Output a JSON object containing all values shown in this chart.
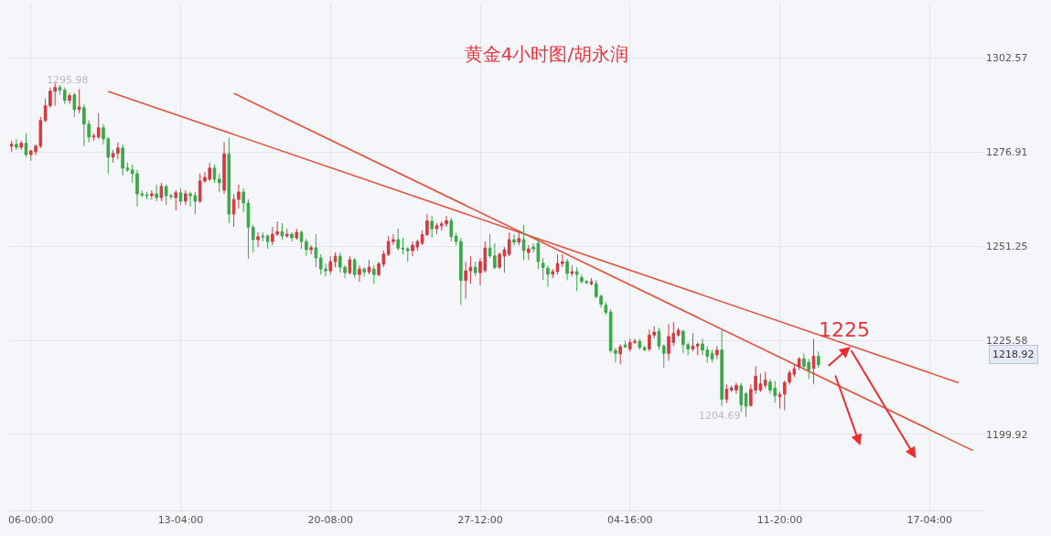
{
  "chart_data": {
    "type": "candlestick",
    "title": "黄金4小时图/胡永润",
    "categories": [
      null,
      null,
      null,
      null,
      "06-00:00",
      null,
      null,
      null,
      null,
      null,
      null,
      null,
      null,
      null,
      null,
      null,
      null,
      null,
      null,
      null,
      null,
      null,
      null,
      null,
      null,
      null,
      null,
      null,
      null,
      null,
      null,
      null,
      null,
      null,
      null,
      "13-04:00",
      null,
      null,
      null,
      null,
      null,
      null,
      null,
      null,
      null,
      null,
      null,
      null,
      null,
      null,
      null,
      null,
      null,
      null,
      null,
      null,
      null,
      null,
      null,
      null,
      null,
      null,
      null,
      null,
      null,
      null,
      "20-08:00",
      null,
      null,
      null,
      null,
      null,
      null,
      null,
      null,
      null,
      null,
      null,
      null,
      null,
      null,
      null,
      null,
      null,
      null,
      null,
      null,
      null,
      null,
      null,
      null,
      null,
      null,
      null,
      null,
      null,
      null,
      "27-12:00",
      null,
      null,
      null,
      null,
      null,
      null,
      null,
      null,
      null,
      null,
      null,
      null,
      null,
      null,
      null,
      null,
      null,
      null,
      null,
      null,
      null,
      null,
      null,
      null,
      null,
      null,
      null,
      null,
      null,
      null,
      "04-16:00",
      null,
      null,
      null,
      null,
      null,
      null,
      null,
      null,
      null,
      null,
      null,
      null,
      null,
      null,
      null,
      null,
      null,
      null,
      null,
      null,
      null,
      null,
      null,
      null,
      null,
      null,
      null,
      null,
      null,
      null,
      "11-20:00",
      null,
      null,
      null,
      null,
      null,
      null,
      null,
      null,
      null,
      null,
      null,
      null,
      null,
      null,
      null,
      null,
      null,
      null,
      null,
      null,
      null,
      null,
      null,
      null,
      null,
      null,
      null,
      null,
      null,
      null,
      "17-04:00",
      null,
      null,
      null,
      null,
      null,
      null,
      null,
      null,
      null,
      null,
      null
    ],
    "ylim": [
      1179.2,
      1317.35
    ],
    "yticks": [
      1199.92,
      1225.58,
      1251.25,
      1276.91,
      1302.57
    ],
    "grid": true,
    "series": [
      {
        "type": "line",
        "color": "#e0533c",
        "values": [
          null,
          null,
          null,
          null,
          null,
          null,
          null,
          null,
          null,
          null,
          null,
          null,
          null,
          null,
          null,
          null,
          null,
          null,
          null,
          null,
          1293.4,
          null,
          null,
          null,
          null,
          null,
          null,
          null,
          null,
          null,
          null,
          null,
          null,
          null,
          null,
          null,
          null,
          null,
          null,
          null,
          null,
          null,
          null,
          null,
          null,
          null,
          null,
          null,
          null,
          null,
          null,
          null,
          null,
          null,
          null,
          null,
          null,
          null,
          null,
          null,
          null,
          null,
          null,
          null,
          null,
          null,
          null,
          null,
          null,
          null,
          null,
          null,
          null,
          null,
          null,
          null,
          null,
          null,
          null,
          null,
          null,
          null,
          null,
          null,
          null,
          null,
          null,
          null,
          null,
          null,
          null,
          null,
          null,
          null,
          null,
          null,
          null,
          null,
          null,
          null,
          null,
          null,
          null,
          null,
          null,
          null,
          null,
          null,
          null,
          null,
          null,
          null,
          null,
          null,
          null,
          null,
          null,
          null,
          null,
          null,
          null,
          null,
          null,
          null,
          null,
          null,
          null,
          null,
          null,
          null,
          null,
          null,
          null,
          null,
          null,
          null,
          null,
          null,
          null,
          null,
          null,
          null,
          null,
          null,
          null,
          null,
          null,
          null,
          null,
          null,
          null,
          null,
          null,
          null,
          null,
          null,
          null,
          null,
          null,
          null,
          null,
          null,
          null,
          null,
          null,
          null,
          null,
          null,
          null,
          null,
          null,
          null,
          null,
          null,
          null,
          null,
          null,
          null,
          null,
          null,
          null,
          null,
          null,
          null,
          null,
          null,
          null,
          null,
          null,
          null,
          null,
          null,
          null,
          null,
          null,
          null,
          1214.0,
          null,
          null,
          null,
          null,
          null
        ]
      },
      {
        "type": "line",
        "color": "#e0533c",
        "values": [
          null,
          null,
          null,
          null,
          null,
          null,
          null,
          null,
          null,
          null,
          null,
          null,
          null,
          null,
          null,
          null,
          null,
          null,
          null,
          null,
          null,
          null,
          null,
          null,
          null,
          null,
          null,
          null,
          null,
          null,
          null,
          null,
          null,
          null,
          null,
          null,
          null,
          null,
          null,
          null,
          null,
          null,
          null,
          null,
          null,
          null,
          1292.9,
          null,
          null,
          null,
          null,
          null,
          null,
          null,
          null,
          null,
          null,
          null,
          null,
          null,
          null,
          null,
          null,
          null,
          null,
          null,
          null,
          null,
          null,
          null,
          null,
          null,
          null,
          null,
          null,
          null,
          null,
          null,
          null,
          null,
          null,
          null,
          null,
          null,
          null,
          null,
          null,
          null,
          null,
          null,
          null,
          null,
          null,
          null,
          null,
          null,
          null,
          null,
          null,
          null,
          null,
          null,
          null,
          null,
          null,
          null,
          null,
          null,
          null,
          null,
          null,
          null,
          null,
          null,
          null,
          null,
          null,
          null,
          null,
          null,
          null,
          null,
          null,
          null,
          null,
          null,
          null,
          null,
          null,
          null,
          null,
          null,
          null,
          null,
          null,
          null,
          null,
          null,
          null,
          null,
          null,
          null,
          null,
          null,
          null,
          null,
          null,
          null,
          null,
          null,
          null,
          null,
          null,
          null,
          null,
          null,
          null,
          null,
          null,
          null,
          null,
          null,
          null,
          null,
          null,
          null,
          null,
          null,
          null,
          null,
          null,
          null,
          null,
          null,
          null,
          null,
          null,
          null,
          null,
          null,
          null,
          null,
          null,
          null,
          null,
          null,
          null,
          null,
          null,
          null,
          null,
          null,
          null,
          null,
          null,
          null,
          null,
          null,
          null,
          1195.5,
          null,
          null
        ]
      },
      {
        "ohlc": [
          [
            1278.5,
            1280,
            1277,
            1279
          ],
          [
            1279,
            1280.5,
            1277.5,
            1278.2
          ],
          [
            1278.2,
            1280,
            1277.5,
            1279.3
          ],
          [
            1279.3,
            1282,
            1275.5,
            1276.2
          ],
          [
            1276.2,
            1277.5,
            1274.5,
            1277.2
          ],
          [
            1277,
            1279,
            1276,
            1278.5
          ],
          [
            1278.5,
            1286.5,
            1278,
            1285.5
          ],
          [
            1285.5,
            1291.5,
            1285,
            1289.5
          ],
          [
            1289.5,
            1294.5,
            1289,
            1293.5
          ],
          [
            1293.5,
            1295.98,
            1289.5,
            1294.5
          ],
          [
            1294.5,
            1295.2,
            1292.5,
            1293.8
          ],
          [
            1293.8,
            1294.5,
            1290,
            1291
          ],
          [
            1291,
            1293,
            1290,
            1292.3
          ],
          [
            1292.5,
            1293,
            1286.5,
            1288.5
          ],
          [
            1288.5,
            1294,
            1287.5,
            1289.2
          ],
          [
            1289,
            1290,
            1278.5,
            1284.5
          ],
          [
            1284.5,
            1285.5,
            1279.5,
            1281
          ],
          [
            1281,
            1282,
            1280,
            1281.3
          ],
          [
            1281,
            1287.5,
            1280.5,
            1283.5
          ],
          [
            1283.5,
            1284.5,
            1279,
            1280.5
          ],
          [
            1280.5,
            1281,
            1271,
            1275.5
          ],
          [
            1275.5,
            1277.5,
            1274,
            1276.5
          ],
          [
            1276.5,
            1279.5,
            1275,
            1278
          ],
          [
            1278,
            1279,
            1270.5,
            1272.5
          ],
          [
            1272.5,
            1274,
            1271.5,
            1272
          ],
          [
            1272,
            1273.5,
            1268.5,
            1271
          ],
          [
            1271,
            1272,
            1262,
            1265.5
          ],
          [
            1265.5,
            1266.5,
            1264.5,
            1265.2
          ],
          [
            1265.2,
            1266,
            1264,
            1265
          ],
          [
            1265,
            1266.5,
            1264,
            1265.5
          ],
          [
            1265.5,
            1268,
            1263.5,
            1264.5
          ],
          [
            1264.5,
            1268.5,
            1263.5,
            1267.5
          ],
          [
            1267.5,
            1268,
            1262.5,
            1265
          ],
          [
            1265,
            1265.5,
            1264,
            1264.8
          ],
          [
            1264.5,
            1266.5,
            1261,
            1265.8
          ],
          [
            1265.8,
            1267,
            1262.5,
            1263.5
          ],
          [
            1263.5,
            1266.5,
            1262.5,
            1265.5
          ],
          [
            1265.5,
            1266,
            1262,
            1265
          ],
          [
            1265,
            1266,
            1260,
            1263.5
          ],
          [
            1263.5,
            1271,
            1263,
            1269
          ],
          [
            1269,
            1271.5,
            1268.5,
            1270
          ],
          [
            1269.5,
            1274,
            1269,
            1272.5
          ],
          [
            1272.5,
            1273.5,
            1268.5,
            1269.5
          ],
          [
            1269.5,
            1271,
            1266,
            1268.5
          ],
          [
            1266.5,
            1279.6,
            1265.5,
            1276.4
          ],
          [
            1276.4,
            1280.8,
            1257.5,
            1260
          ],
          [
            1260,
            1265.5,
            1256.5,
            1264
          ],
          [
            1264,
            1268,
            1261.5,
            1266
          ],
          [
            1266,
            1267,
            1260.5,
            1263
          ],
          [
            1263,
            1264,
            1247.8,
            1256.4
          ],
          [
            1256.4,
            1257,
            1249.5,
            1253
          ],
          [
            1253,
            1255,
            1251,
            1253.8
          ],
          [
            1254,
            1255,
            1252.5,
            1253.8
          ],
          [
            1254,
            1254.5,
            1250.5,
            1252.5
          ],
          [
            1252.5,
            1256.5,
            1251.5,
            1254.5
          ],
          [
            1254.5,
            1258,
            1254,
            1255.2
          ],
          [
            1255.2,
            1257.5,
            1253,
            1254
          ],
          [
            1254,
            1256,
            1253.5,
            1254.5
          ],
          [
            1254.5,
            1255,
            1252.5,
            1253.5
          ],
          [
            1253.5,
            1256,
            1253,
            1255
          ],
          [
            1255,
            1255.5,
            1250.5,
            1252.5
          ],
          [
            1252.5,
            1253.2,
            1248.5,
            1250.3
          ],
          [
            1250.3,
            1251.5,
            1249,
            1250.8
          ],
          [
            1250.8,
            1254.5,
            1245.5,
            1248
          ],
          [
            1248,
            1249,
            1243.5,
            1245
          ],
          [
            1245,
            1246.5,
            1243,
            1244.5
          ],
          [
            1244.5,
            1248.5,
            1243.5,
            1247
          ],
          [
            1247,
            1249.5,
            1245.5,
            1248.5
          ],
          [
            1248.5,
            1249.5,
            1244,
            1245.5
          ],
          [
            1245.5,
            1246,
            1242.5,
            1244
          ],
          [
            1244,
            1248.5,
            1243.5,
            1247.5
          ],
          [
            1247.5,
            1248,
            1242.5,
            1243.5
          ],
          [
            1243.5,
            1246,
            1241.5,
            1245
          ],
          [
            1245,
            1245.5,
            1243,
            1244.2
          ],
          [
            1244.2,
            1247.5,
            1243.5,
            1245.5
          ],
          [
            1245,
            1246,
            1240.9,
            1243.5
          ],
          [
            1243.5,
            1247,
            1243,
            1246.4
          ],
          [
            1246.3,
            1250,
            1245.5,
            1249.1
          ],
          [
            1249,
            1254,
            1248.5,
            1252.5
          ],
          [
            1252.5,
            1254.5,
            1251.5,
            1253
          ],
          [
            1253,
            1256,
            1250,
            1250.7
          ],
          [
            1250.7,
            1253.5,
            1249,
            1250.5
          ],
          [
            1250.5,
            1251,
            1247,
            1250
          ],
          [
            1250,
            1252.5,
            1248.5,
            1251.5
          ],
          [
            1251,
            1253,
            1250,
            1252.5
          ],
          [
            1252,
            1255.5,
            1251.5,
            1254.4
          ],
          [
            1254.4,
            1260,
            1254,
            1258.1
          ],
          [
            1258,
            1259.5,
            1253.5,
            1256
          ],
          [
            1256,
            1257.5,
            1254.5,
            1256.8
          ],
          [
            1256.8,
            1258,
            1255.5,
            1257.3
          ],
          [
            1257.3,
            1259.5,
            1256.5,
            1258.2
          ],
          [
            1258.2,
            1259,
            1252.5,
            1253.8
          ],
          [
            1254,
            1254.8,
            1251.5,
            1252.5
          ],
          [
            1252.5,
            1253.5,
            1235.2,
            1241.9
          ],
          [
            1241.9,
            1247,
            1236.9,
            1244.5
          ],
          [
            1244.5,
            1248.5,
            1241,
            1245.5
          ],
          [
            1245.5,
            1247,
            1243,
            1244
          ],
          [
            1244,
            1248,
            1240.5,
            1247
          ],
          [
            1244.6,
            1252.5,
            1244,
            1250.7
          ],
          [
            1250.7,
            1254.5,
            1248,
            1248.6
          ],
          [
            1248.6,
            1252,
            1245,
            1245.4
          ],
          [
            1245.5,
            1249.5,
            1245,
            1249
          ],
          [
            1248.5,
            1251,
            1244,
            1250.2
          ],
          [
            1249,
            1255,
            1248.5,
            1253
          ],
          [
            1253,
            1254.5,
            1251.5,
            1252.3
          ],
          [
            1252.3,
            1255.5,
            1251.5,
            1253.3
          ],
          [
            1253,
            1257,
            1247.5,
            1250
          ],
          [
            1249.5,
            1251.5,
            1247.5,
            1250.5
          ],
          [
            1251,
            1252,
            1249.5,
            1250.5
          ],
          [
            1252,
            1253.5,
            1245,
            1247
          ],
          [
            1246.6,
            1248,
            1242,
            1245.4
          ],
          [
            1245.2,
            1246,
            1240.1,
            1243.6
          ],
          [
            1243.6,
            1245,
            1242.5,
            1244.3
          ],
          [
            1244.3,
            1249,
            1243.5,
            1246.5
          ],
          [
            1246.5,
            1249,
            1245.5,
            1247
          ],
          [
            1247,
            1247.8,
            1242,
            1243.8
          ],
          [
            1243.8,
            1246,
            1243,
            1244.3
          ],
          [
            1244.3,
            1245.5,
            1239,
            1243.5
          ],
          [
            1242.7,
            1243.5,
            1241,
            1241.6
          ],
          [
            1241.6,
            1242,
            1240.8,
            1241.3
          ],
          [
            1241,
            1242.5,
            1240.5,
            1241.5
          ],
          [
            1241,
            1242,
            1237,
            1237.5
          ],
          [
            1237.6,
            1238,
            1234.5,
            1235.4
          ],
          [
            1235.1,
            1236,
            1232.5,
            1233.2
          ],
          [
            1233.3,
            1234,
            1222.2,
            1222.8
          ],
          [
            1222.8,
            1223.5,
            1219.5,
            1222
          ],
          [
            1221.9,
            1224.5,
            1219,
            1223.8
          ],
          [
            1224.3,
            1225.5,
            1223.5,
            1223.8
          ],
          [
            1223.2,
            1226,
            1222.5,
            1225
          ],
          [
            1225,
            1226,
            1224.5,
            1225.3
          ],
          [
            1225.3,
            1226,
            1223,
            1223.6
          ],
          [
            1223.6,
            1224,
            1222.6,
            1223
          ],
          [
            1223.2,
            1228.5,
            1222.5,
            1227
          ],
          [
            1227,
            1229.5,
            1226,
            1227.8
          ],
          [
            1228,
            1229,
            1223,
            1224
          ],
          [
            1224,
            1224.5,
            1218,
            1222
          ],
          [
            1222,
            1230,
            1220,
            1226.6
          ],
          [
            1225,
            1230.5,
            1224,
            1227.5
          ],
          [
            1227,
            1229,
            1226.5,
            1228.3
          ],
          [
            1228,
            1228.5,
            1222,
            1224.4
          ],
          [
            1224.4,
            1225,
            1221.5,
            1223.2
          ],
          [
            1223.2,
            1227.5,
            1222.5,
            1224
          ],
          [
            1224,
            1225,
            1221.5,
            1224.5
          ],
          [
            1224.6,
            1226,
            1221.5,
            1222.9
          ],
          [
            1222.9,
            1224,
            1219.4,
            1221.2
          ],
          [
            1222,
            1223,
            1219.5,
            1220.5
          ],
          [
            1221.6,
            1224,
            1220.5,
            1222.9
          ],
          [
            1222.9,
            1228.5,
            1207.6,
            1209.5
          ],
          [
            1209.5,
            1213.5,
            1208.5,
            1212.2
          ],
          [
            1212,
            1213.2,
            1211.5,
            1212.6
          ],
          [
            1212,
            1214,
            1211,
            1213.3
          ],
          [
            1213.2,
            1214,
            1206,
            1208
          ],
          [
            1211,
            1211.5,
            1204.69,
            1207.6
          ],
          [
            1207.8,
            1213.5,
            1207.5,
            1212.2
          ],
          [
            1212,
            1218.5,
            1211,
            1215.8
          ],
          [
            1212,
            1216.5,
            1211.5,
            1213.7
          ],
          [
            1213.3,
            1217,
            1212.5,
            1214.7
          ],
          [
            1214.2,
            1215,
            1211,
            1212
          ],
          [
            1212.5,
            1214.5,
            1208.5,
            1210.5
          ],
          [
            1210.2,
            1211.5,
            1207,
            1210.8
          ],
          [
            1210.9,
            1214.5,
            1206.5,
            1214.1
          ],
          [
            1214.2,
            1217.5,
            1213.5,
            1216.7
          ],
          [
            1216.3,
            1219,
            1215.5,
            1217.8
          ],
          [
            1218.3,
            1221,
            1217.5,
            1220.5
          ],
          [
            1220.5,
            1222,
            1218,
            1218.5
          ],
          [
            1219.5,
            1220.5,
            1215,
            1217.5
          ],
          [
            1217.9,
            1226,
            1213.7,
            1221.2
          ],
          [
            1221.2,
            1222.5,
            1218,
            1218.92
          ],
          null,
          null,
          null,
          null,
          null,
          null,
          null,
          null,
          null,
          null,
          null,
          null,
          null,
          null,
          null,
          null,
          null,
          null,
          null,
          null,
          null,
          null,
          null,
          null,
          null,
          null,
          null,
          null,
          null,
          null,
          null,
          null,
          null,
          null
        ],
        "colors": [
          "#d43a3f",
          "#3aa846",
          "#d43a3f",
          "#3aa846",
          "#d43a3f",
          "#d43a3f",
          "#d43a3f",
          "#d43a3f",
          "#d43a3f",
          "#d43a3f",
          "#3aa846",
          "#3aa846",
          "#d43a3f",
          "#3aa846",
          "#d43a3f",
          "#3aa846",
          "#3aa846",
          "#d43a3f",
          "#d43a3f",
          "#3aa846",
          "#3aa846",
          "#d43a3f",
          "#d43a3f",
          "#3aa846",
          "#3aa846",
          "#3aa846",
          "#3aa846",
          "#3aa846",
          "#3aa846",
          "#d43a3f",
          "#3aa846",
          "#d43a3f",
          "#3aa846",
          "#3aa846",
          "#d43a3f",
          "#3aa846",
          "#d43a3f",
          "#3aa846",
          "#3aa846",
          "#d43a3f",
          "#d43a3f",
          "#d43a3f",
          "#3aa846",
          "#3aa846",
          "#d43a3f",
          "#3aa846",
          "#d43a3f",
          "#d43a3f",
          "#3aa846",
          "#3aa846",
          "#3aa846",
          "#d43a3f",
          "#3aa846",
          "#3aa846",
          "#d43a3f",
          "#d43a3f",
          "#3aa846",
          "#d43a3f",
          "#3aa846",
          "#d43a3f",
          "#3aa846",
          "#3aa846",
          "#d43a3f",
          "#3aa846",
          "#3aa846",
          "#3aa846",
          "#d43a3f",
          "#d43a3f",
          "#3aa846",
          "#3aa846",
          "#d43a3f",
          "#3aa846",
          "#d43a3f",
          "#3aa846",
          "#d43a3f",
          "#3aa846",
          "#d43a3f",
          "#d43a3f",
          "#d43a3f",
          "#d43a3f",
          "#3aa846",
          "#3aa846",
          "#3aa846",
          "#d43a3f",
          "#d43a3f",
          "#d43a3f",
          "#d43a3f",
          "#3aa846",
          "#d43a3f",
          "#d43a3f",
          "#d43a3f",
          "#3aa846",
          "#3aa846",
          "#3aa846",
          "#d43a3f",
          "#d43a3f",
          "#3aa846",
          "#d43a3f",
          "#d43a3f",
          "#3aa846",
          "#3aa846",
          "#d43a3f",
          "#d43a3f",
          "#d43a3f",
          "#3aa846",
          "#d43a3f",
          "#3aa846",
          "#d43a3f",
          "#3aa846",
          "#3aa846",
          "#3aa846",
          "#3aa846",
          "#d43a3f",
          "#d43a3f",
          "#d43a3f",
          "#3aa846",
          "#d43a3f",
          "#3aa846",
          "#3aa846",
          "#3aa846",
          "#d43a3f",
          "#3aa846",
          "#3aa846",
          "#3aa846",
          "#3aa846",
          "#3aa846",
          "#d43a3f",
          "#3aa846",
          "#d43a3f",
          "#d43a3f",
          "#3aa846",
          "#3aa846",
          "#d43a3f",
          "#d43a3f",
          "#3aa846",
          "#3aa846",
          "#d43a3f",
          "#d43a3f",
          "#d43a3f",
          "#3aa846",
          "#3aa846",
          "#d43a3f",
          "#d43a3f",
          "#3aa846",
          "#3aa846",
          "#3aa846",
          "#d43a3f",
          "#3aa846",
          "#d43a3f",
          "#d43a3f",
          "#d43a3f",
          "#3aa846",
          "#3aa846",
          "#d43a3f",
          "#d43a3f",
          "#d43a3f",
          "#d43a3f",
          "#3aa846",
          "#3aa846",
          "#d43a3f",
          "#d43a3f",
          "#d43a3f",
          "#d43a3f",
          "#d43a3f",
          "#3aa846",
          "#3aa846",
          "#d43a3f",
          "#3aa846",
          null,
          null,
          null,
          null,
          null,
          null,
          null,
          null,
          null,
          null,
          null,
          null,
          null,
          null,
          null,
          null,
          null,
          null,
          null,
          null,
          null,
          null,
          null,
          null,
          null,
          null,
          null,
          null,
          null,
          null,
          null,
          null,
          null,
          null
        ]
      }
    ],
    "annotations": [
      "1295.98",
      "1204.69",
      "1225",
      "1218.92"
    ]
  }
}
